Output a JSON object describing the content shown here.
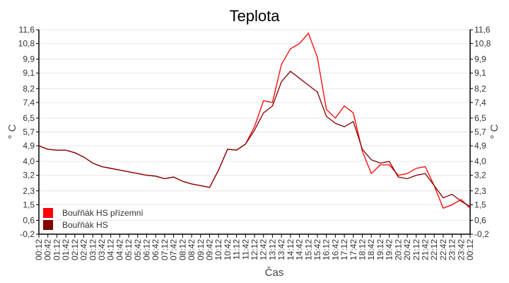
{
  "chart_data": {
    "type": "line",
    "title": "Teplota",
    "xlabel": "Čas",
    "ylabel": "° C",
    "ylabel_right": "° C",
    "ylim": [
      -0.2,
      11.6
    ],
    "yticks": [
      "-0,2",
      "0,6",
      "1,5",
      "2,3",
      "3,2",
      "4,0",
      "4,9",
      "5,7",
      "6,5",
      "7,4",
      "8,2",
      "9,1",
      "9,9",
      "10,8",
      "11,6"
    ],
    "ytick_values": [
      -0.2,
      0.6,
      1.5,
      2.3,
      3.2,
      4.0,
      4.9,
      5.7,
      6.5,
      7.4,
      8.2,
      9.1,
      9.9,
      10.8,
      11.6
    ],
    "grid": "horizontal",
    "legend_position": "bottom-left",
    "x": [
      "00:12",
      "00:42",
      "01:12",
      "01:42",
      "02:12",
      "02:42",
      "03:12",
      "03:42",
      "04:12",
      "04:42",
      "05:12",
      "05:42",
      "06:12",
      "06:42",
      "07:12",
      "07:42",
      "08:12",
      "08:42",
      "09:12",
      "09:42",
      "10:12",
      "10:42",
      "11:12",
      "11:42",
      "12:12",
      "12:42",
      "13:12",
      "13:42",
      "14:12",
      "14:42",
      "15:12",
      "15:42",
      "16:12",
      "16:42",
      "17:12",
      "17:42",
      "18:12",
      "18:42",
      "19:12",
      "19:42",
      "20:12",
      "20:42",
      "21:12",
      "21:42",
      "22:12",
      "22:42",
      "23:12",
      "23:42",
      "00:12"
    ],
    "series": [
      {
        "name": "Bouřňák HS přízemní",
        "color": "#ff0000",
        "values": [
          4.9,
          4.7,
          4.65,
          4.65,
          4.5,
          4.25,
          3.9,
          3.7,
          3.6,
          3.5,
          3.4,
          3.3,
          3.2,
          3.15,
          3.0,
          3.1,
          2.85,
          2.7,
          2.6,
          2.5,
          3.5,
          4.7,
          4.65,
          5.0,
          6.0,
          7.5,
          7.4,
          9.6,
          10.5,
          10.8,
          11.4,
          10.0,
          7.0,
          6.5,
          7.2,
          6.8,
          4.6,
          3.3,
          3.8,
          3.8,
          3.2,
          3.3,
          3.6,
          3.7,
          2.6,
          1.3,
          1.5,
          1.8,
          1.3
        ]
      },
      {
        "name": "Bouřňák HS",
        "color": "#800000",
        "values": [
          4.9,
          4.7,
          4.65,
          4.65,
          4.5,
          4.25,
          3.9,
          3.7,
          3.6,
          3.5,
          3.4,
          3.3,
          3.2,
          3.15,
          3.0,
          3.1,
          2.85,
          2.7,
          2.6,
          2.5,
          3.5,
          4.7,
          4.65,
          5.0,
          5.8,
          6.8,
          7.2,
          8.6,
          9.2,
          8.8,
          8.4,
          8.0,
          6.6,
          6.2,
          6.0,
          6.3,
          4.7,
          4.1,
          3.9,
          4.0,
          3.1,
          3.0,
          3.2,
          3.3,
          2.6,
          1.9,
          2.1,
          1.7,
          1.4
        ]
      }
    ]
  }
}
